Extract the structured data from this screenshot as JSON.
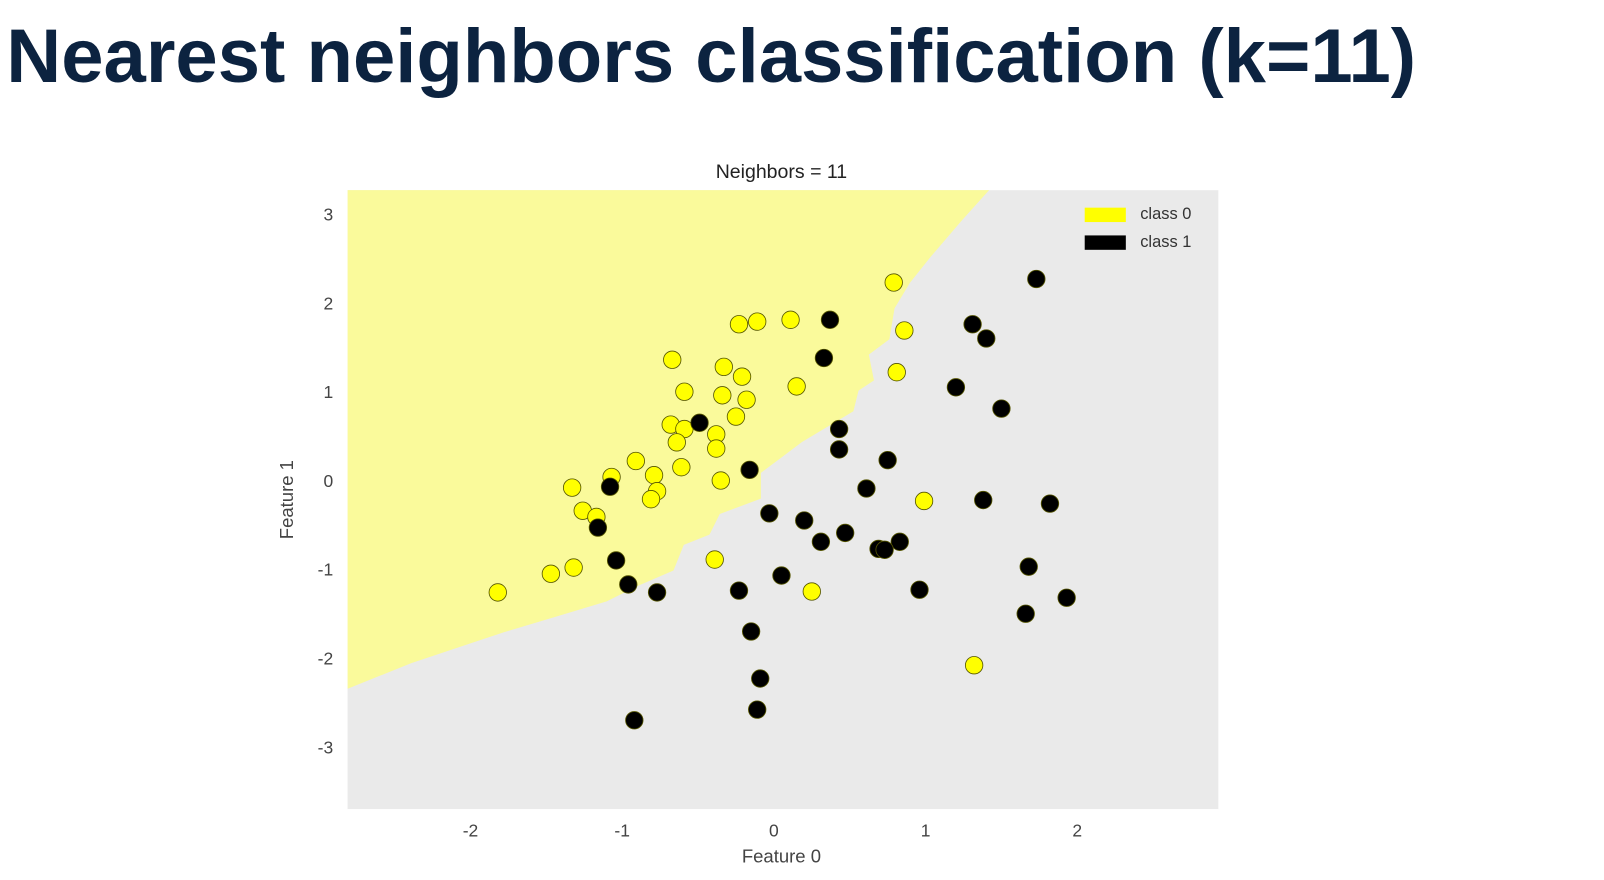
{
  "slide": {
    "title": "Nearest neighbors classification (k=11)"
  },
  "chart_data": {
    "type": "scatter",
    "title": "Neighbors = 11",
    "x_label": "Feature 0",
    "y_label": "Feature 1",
    "xlim": [
      -2.81,
      2.93
    ],
    "ylim": [
      -3.68,
      3.29
    ],
    "xticks": [
      -2,
      -1,
      0,
      1,
      2
    ],
    "yticks": [
      -3,
      -2,
      -1,
      0,
      1,
      2,
      3
    ],
    "grid": false,
    "legend": "upper right",
    "series": [
      {
        "name": "class 0",
        "color": "#ffff00",
        "x": [
          0.79,
          0.86,
          0.81,
          0.11,
          -0.11,
          -0.23,
          -0.67,
          -0.33,
          -0.21,
          0.15,
          -0.59,
          -0.34,
          -0.18,
          -0.25,
          -0.68,
          -0.59,
          -0.38,
          -0.38,
          -0.64,
          -0.91,
          -0.61,
          -0.79,
          -1.07,
          -0.35,
          -1.33,
          -0.77,
          -0.81,
          -1.26,
          -1.17,
          0.99,
          -0.39,
          -1.32,
          -1.47,
          -1.82,
          0.25,
          1.32
        ],
        "values": [
          2.25,
          1.71,
          1.24,
          1.83,
          1.81,
          1.78,
          1.38,
          1.3,
          1.19,
          1.08,
          1.02,
          0.98,
          0.93,
          0.74,
          0.65,
          0.6,
          0.54,
          0.38,
          0.45,
          0.24,
          0.17,
          0.08,
          0.06,
          0.02,
          -0.06,
          -0.1,
          -0.19,
          -0.32,
          -0.39,
          -0.21,
          -0.87,
          -0.96,
          -1.03,
          -1.24,
          -1.23,
          -2.06
        ]
      },
      {
        "name": "class 1",
        "color": "#000000",
        "x": [
          1.73,
          0.37,
          1.31,
          1.4,
          0.33,
          1.2,
          1.5,
          -0.49,
          0.43,
          0.43,
          0.75,
          -0.16,
          -1.08,
          0.61,
          1.38,
          1.82,
          -0.03,
          -1.16,
          0.2,
          0.47,
          0.31,
          0.83,
          0.69,
          0.73,
          -1.04,
          1.68,
          0.05,
          -0.96,
          -0.77,
          -0.23,
          0.96,
          1.93,
          1.66,
          -0.15,
          -0.09,
          -0.11,
          -0.92
        ],
        "values": [
          2.29,
          1.83,
          1.78,
          1.62,
          1.4,
          1.07,
          0.83,
          0.67,
          0.6,
          0.37,
          0.25,
          0.14,
          -0.05,
          -0.07,
          -0.2,
          -0.24,
          -0.35,
          -0.51,
          -0.43,
          -0.57,
          -0.67,
          -0.67,
          -0.75,
          -0.76,
          -0.88,
          -0.95,
          -1.05,
          -1.15,
          -1.24,
          -1.22,
          -1.21,
          -1.3,
          -1.48,
          -1.68,
          -2.21,
          -2.56,
          -2.68
        ]
      }
    ]
  }
}
